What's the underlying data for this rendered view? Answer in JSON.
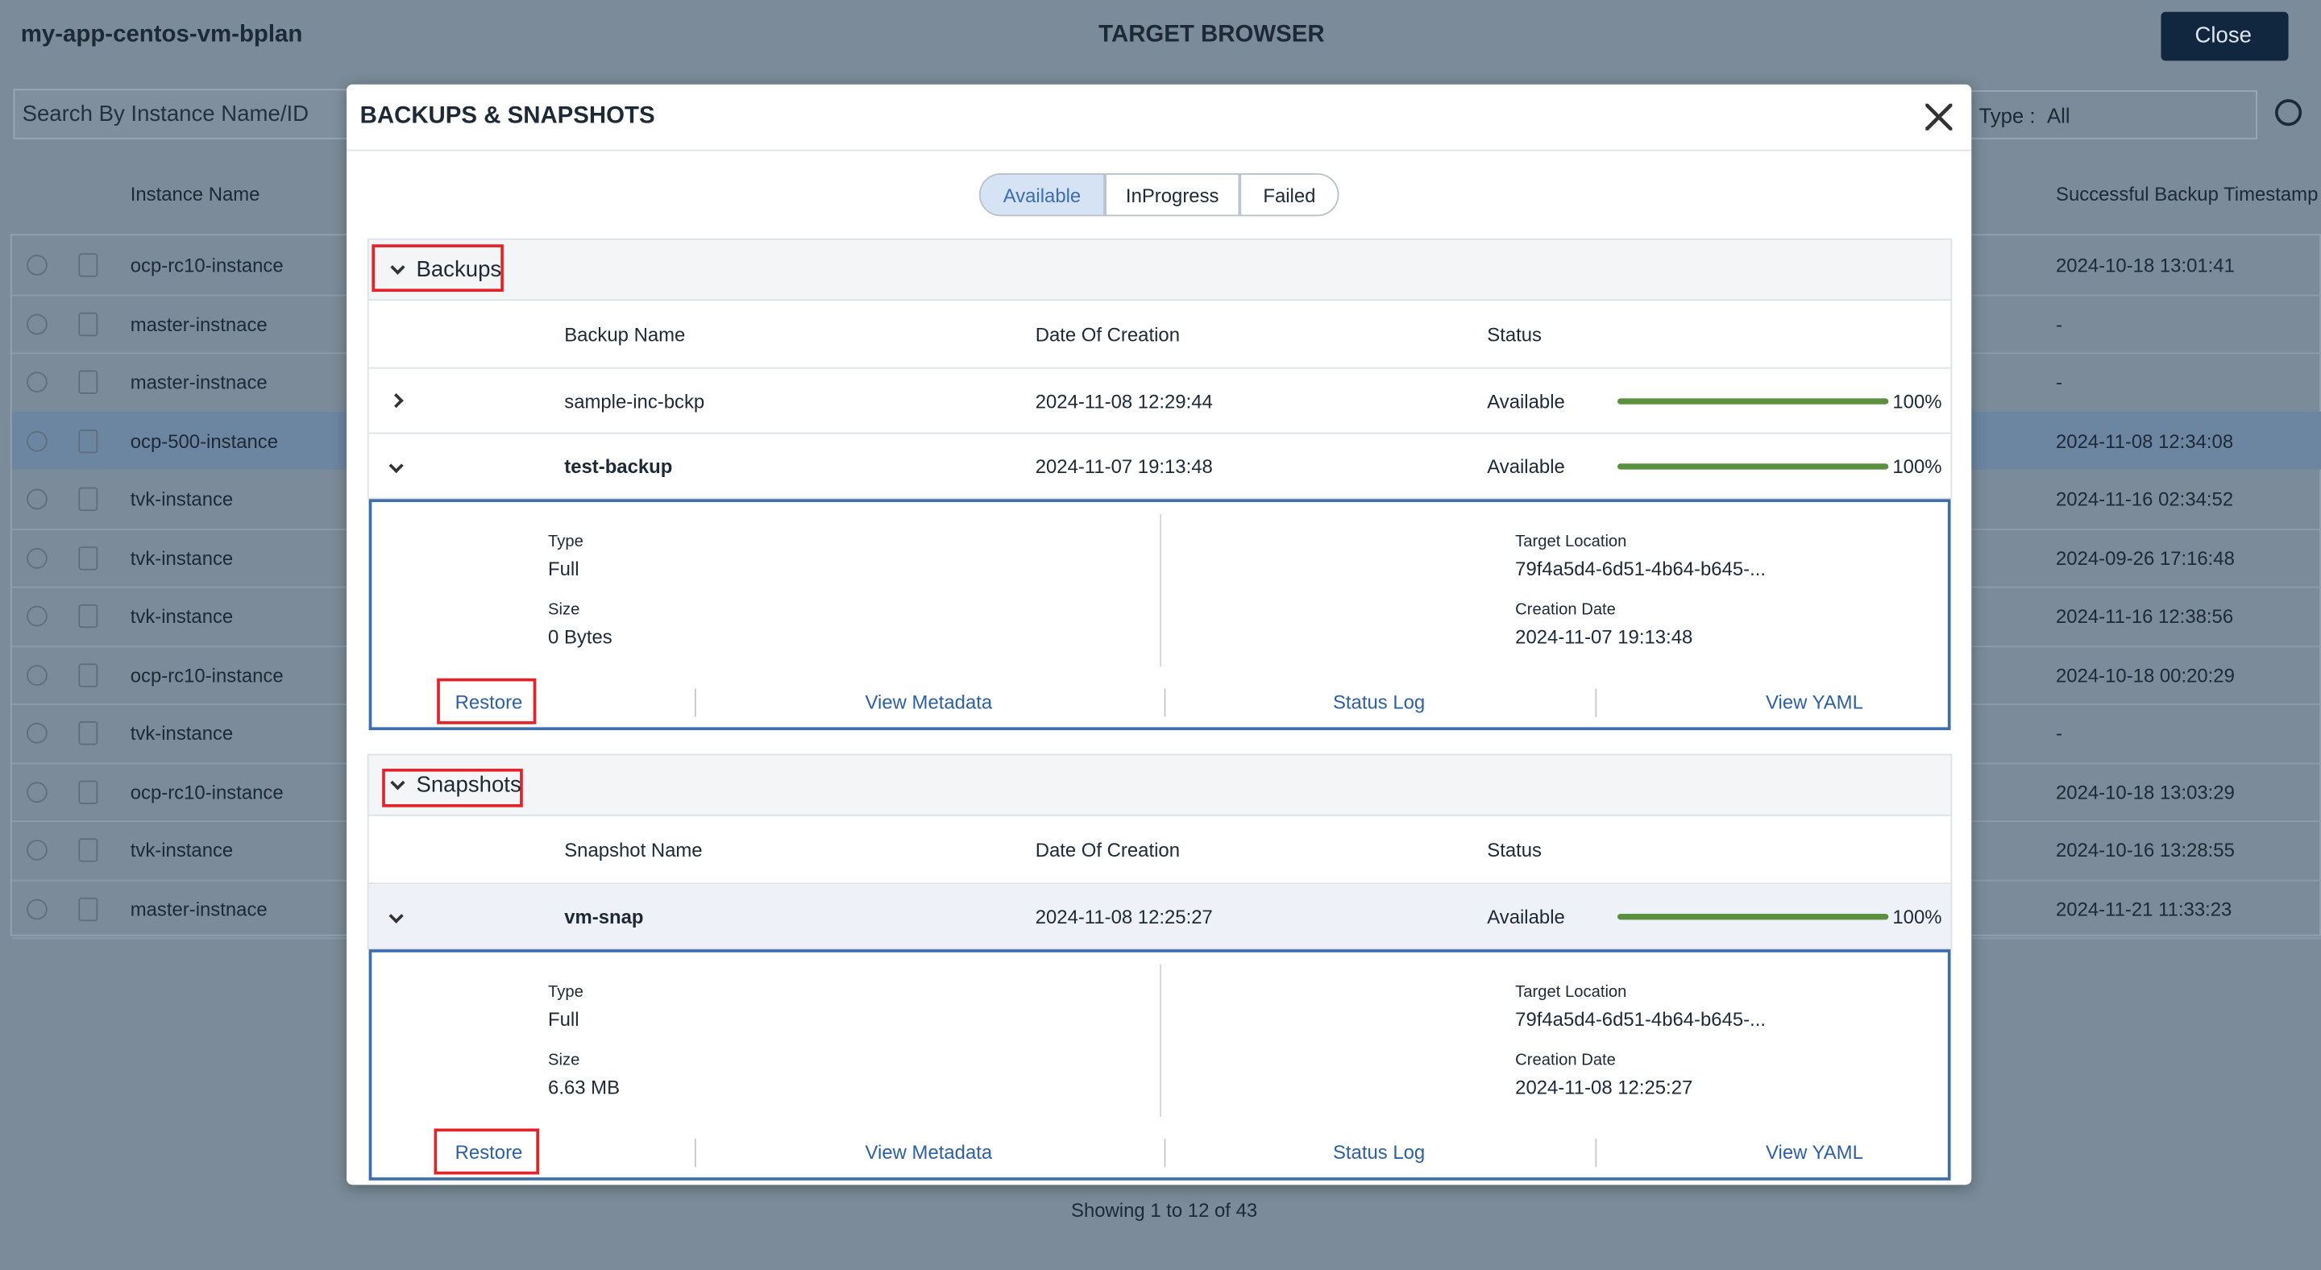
{
  "header": {
    "app_name": "my-app-centos-vm-bplan",
    "title": "TARGET BROWSER",
    "close_button": "Close"
  },
  "toolbar": {
    "search_placeholder": "Search By Instance Name/ID",
    "type_label": "Type :",
    "type_value": "All"
  },
  "table": {
    "columns": [
      "Instance Name",
      "Successful Backup Timestamp"
    ],
    "rows": [
      [
        "ocp-rc10-instance",
        "2024-10-18 13:01:41"
      ],
      [
        "master-instnace",
        "-"
      ],
      [
        "master-instnace",
        "-"
      ],
      [
        "ocp-500-instance",
        "2024-11-08 12:34:08"
      ],
      [
        "tvk-instance",
        "2024-11-16 02:34:52"
      ],
      [
        "tvk-instance",
        "2024-09-26 17:16:48"
      ],
      [
        "tvk-instance",
        "2024-11-16 12:38:56"
      ],
      [
        "ocp-rc10-instance",
        "2024-10-18 00:20:29"
      ],
      [
        "tvk-instance",
        "-"
      ],
      [
        "ocp-rc10-instance",
        "2024-10-18 13:03:29"
      ],
      [
        "tvk-instance",
        "2024-10-16 13:28:55"
      ],
      [
        "master-instnace",
        "2024-11-21 11:33:23"
      ]
    ]
  },
  "footer": {
    "pagination": "Showing 1 to 12 of 43"
  },
  "modal": {
    "title": "BACKUPS & SNAPSHOTS",
    "tabs": [
      "Available",
      "InProgress",
      "Failed"
    ],
    "backups": {
      "title": "Backups",
      "columns": [
        "Backup Name",
        "Date Of Creation",
        "Status"
      ],
      "rows": [
        {
          "name": "sample-inc-bckp",
          "date": "2024-11-08 12:29:44",
          "status": "Available",
          "progress": "100%"
        },
        {
          "name": "test-backup",
          "date": "2024-11-07 19:13:48",
          "status": "Available",
          "progress": "100%"
        }
      ],
      "details": {
        "type_label": "Type",
        "type": "Full",
        "size_label": "Size",
        "size": "0 Bytes",
        "target_label": "Target Location",
        "target": "79f4a5d4-6d51-4b64-b645-...",
        "creation_label": "Creation Date",
        "creation": "2024-11-07 19:13:48",
        "actions": [
          "Restore",
          "View Metadata",
          "Status Log",
          "View YAML"
        ]
      }
    },
    "snapshots": {
      "title": "Snapshots",
      "columns": [
        "Snapshot Name",
        "Date Of Creation",
        "Status"
      ],
      "rows": [
        {
          "name": "vm-snap",
          "date": "2024-11-08 12:25:27",
          "status": "Available",
          "progress": "100%"
        }
      ],
      "details": {
        "type_label": "Type",
        "type": "Full",
        "size_label": "Size",
        "size": "6.63 MB",
        "target_label": "Target Location",
        "target": "79f4a5d4-6d51-4b64-b645-...",
        "creation_label": "Creation Date",
        "creation": "2024-11-08 12:25:27",
        "actions": [
          "Restore",
          "View Metadata",
          "Status Log",
          "View YAML"
        ]
      }
    }
  }
}
